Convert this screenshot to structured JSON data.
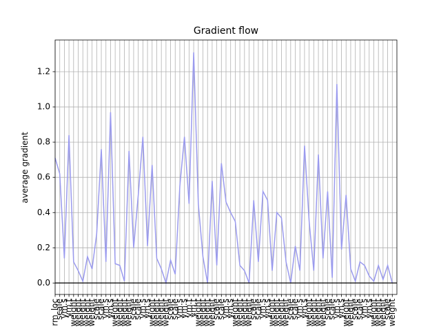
{
  "chart_data": {
    "type": "line",
    "title": "Gradient flow",
    "y_label": "average gradient",
    "categories": [
      "rm_loc",
      "scale",
      "ym.s",
      "ym.t",
      "weight",
      "weight",
      "weight",
      "weight",
      "weight",
      "scale",
      "scale",
      "ym.s",
      "ym.s",
      "weight",
      "weight",
      "weight",
      "weight",
      "scale",
      "scale",
      "ym.s",
      "ym.s",
      "weight",
      "weight",
      "weight",
      "weight",
      "scale",
      "scale",
      "ym.s",
      "ym.s",
      "ym.t",
      "ym.t",
      "weight",
      "weight",
      "weight",
      "weight",
      "scale",
      "scale",
      "ym.s",
      "ym.s",
      "weight",
      "weight",
      "weight",
      "weight",
      "scale",
      "scale",
      "ym.s",
      "ym.s",
      "weight",
      "weight",
      "weight",
      "weight",
      "scale",
      "scale",
      "ym.s",
      "ym.s",
      "weight",
      "weight",
      "weight",
      "weight",
      "scale",
      "scale",
      "ym.s",
      "ym.s",
      "weight",
      "weight",
      "scale",
      "scale",
      "ym.s",
      "ym.s",
      "weight",
      "weight",
      "weight",
      "scale",
      "weight"
    ],
    "values": [
      0.71,
      0.62,
      0.14,
      0.84,
      0.12,
      0.07,
      0.01,
      0.15,
      0.08,
      0.28,
      0.76,
      0.12,
      0.97,
      0.11,
      0.1,
      0.01,
      0.75,
      0.2,
      0.5,
      0.83,
      0.21,
      0.67,
      0.14,
      0.08,
      0.0,
      0.13,
      0.05,
      0.55,
      0.83,
      0.45,
      1.31,
      0.45,
      0.15,
      0.0,
      0.58,
      0.1,
      0.68,
      0.46,
      0.4,
      0.35,
      0.1,
      0.07,
      0.0,
      0.47,
      0.12,
      0.52,
      0.47,
      0.07,
      0.4,
      0.37,
      0.12,
      0.0,
      0.21,
      0.07,
      0.78,
      0.35,
      0.07,
      0.73,
      0.14,
      0.52,
      0.03,
      1.13,
      0.19,
      0.5,
      0.08,
      0.01,
      0.12,
      0.1,
      0.04,
      0.01,
      0.1,
      0.02,
      0.1,
      0.0
    ],
    "color": "#9a9aee",
    "hline": 0,
    "hline_color": "#000000",
    "ylim": [
      -0.065,
      1.38
    ],
    "yticks": [
      {
        "value": 0,
        "label": "0.0"
      },
      {
        "value": 0.2,
        "label": "0.2"
      },
      {
        "value": 0.4,
        "label": "0.4"
      },
      {
        "value": 0.6,
        "label": "0.6"
      },
      {
        "value": 0.8,
        "label": "0.8"
      },
      {
        "value": 1.0,
        "label": "1.0"
      },
      {
        "value": 1.2,
        "label": "1.2"
      }
    ],
    "grid": true
  }
}
